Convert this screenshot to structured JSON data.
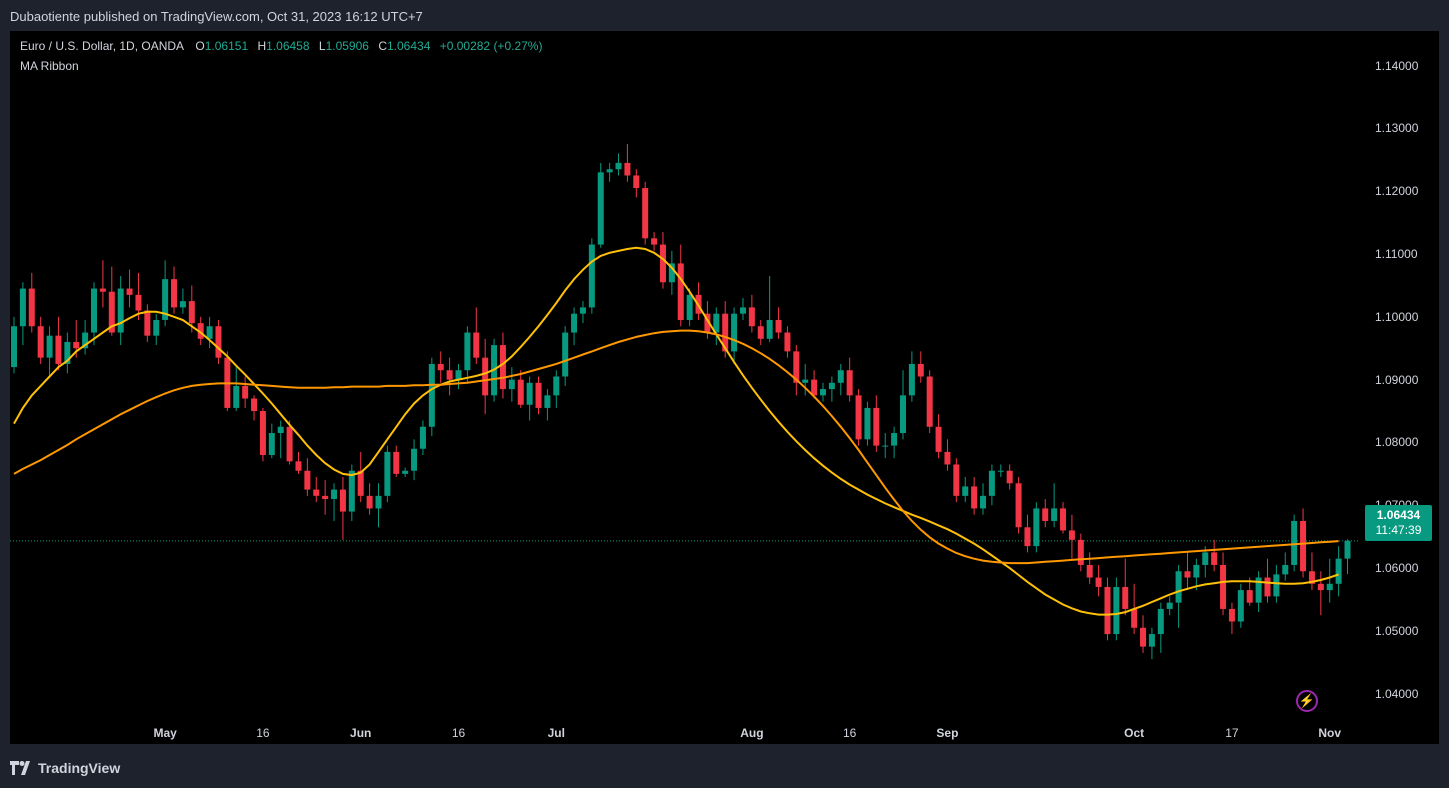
{
  "header": {
    "published": "Dubaotiente published on TradingView.com, Oct 31, 2023 16:12 UTC+7"
  },
  "legend": {
    "symbol": "Euro / U.S. Dollar, 1D, OANDA",
    "o_label": "O",
    "o_value": "1.06151",
    "h_label": "H",
    "h_value": "1.06458",
    "l_label": "L",
    "l_value": "1.05906",
    "c_label": "C",
    "c_value": "1.06434",
    "change": "+0.00282 (+0.27%)",
    "indicator": "MA Ribbon"
  },
  "price_badge": {
    "price": "1.06434",
    "countdown": "11:47:39"
  },
  "branding": {
    "logo_text": "TradingView"
  },
  "colors": {
    "up": "#089981",
    "down": "#f23645",
    "ma_fast": "#ffc107",
    "ma_slow": "#ff9800",
    "bg": "#000000"
  },
  "icons": {
    "bolt": "lightning-bolt-icon",
    "logo": "tradingview-logo-icon"
  },
  "chart_data": {
    "type": "candlestick",
    "title": "Euro / U.S. Dollar, 1D, OANDA",
    "ylim": [
      1.032,
      1.1455
    ],
    "y_ticks": [
      "1.04000",
      "1.05000",
      "1.06000",
      "1.07000",
      "1.08000",
      "1.09000",
      "1.10000",
      "1.11000",
      "1.12000",
      "1.13000",
      "1.14000"
    ],
    "x_ticks": [
      {
        "label": "May",
        "bold": true,
        "index": 17
      },
      {
        "label": "16",
        "bold": false,
        "index": 28
      },
      {
        "label": "Jun",
        "bold": true,
        "index": 39
      },
      {
        "label": "16",
        "bold": false,
        "index": 50
      },
      {
        "label": "Jul",
        "bold": true,
        "index": 61
      },
      {
        "label": "Aug",
        "bold": true,
        "index": 83
      },
      {
        "label": "16",
        "bold": false,
        "index": 94
      },
      {
        "label": "Sep",
        "bold": true,
        "index": 105
      },
      {
        "label": "Oct",
        "bold": true,
        "index": 126
      },
      {
        "label": "17",
        "bold": false,
        "index": 137
      },
      {
        "label": "Nov",
        "bold": true,
        "index": 148
      }
    ],
    "last_price": 1.06434,
    "ohlc": [
      [
        1.092,
        1.1,
        1.091,
        1.0985
      ],
      [
        1.0985,
        1.1055,
        1.0955,
        1.1045
      ],
      [
        1.1045,
        1.107,
        1.0975,
        1.0985
      ],
      [
        1.0985,
        1.1,
        1.0925,
        1.0935
      ],
      [
        1.0935,
        1.0985,
        1.0905,
        1.097
      ],
      [
        1.097,
        1.1,
        1.0915,
        1.0925
      ],
      [
        1.0925,
        1.0975,
        1.091,
        1.096
      ],
      [
        1.096,
        1.0995,
        1.0935,
        1.095
      ],
      [
        1.095,
        1.0995,
        1.094,
        1.0975
      ],
      [
        1.0975,
        1.1055,
        1.0955,
        1.1045
      ],
      [
        1.1045,
        1.109,
        1.1015,
        1.104
      ],
      [
        1.104,
        1.108,
        1.097,
        1.0975
      ],
      [
        1.0975,
        1.1065,
        1.0955,
        1.1045
      ],
      [
        1.1045,
        1.1075,
        1.1015,
        1.1035
      ],
      [
        1.1035,
        1.107,
        1.0995,
        1.101
      ],
      [
        1.101,
        1.102,
        1.096,
        1.097
      ],
      [
        1.097,
        1.1005,
        1.0955,
        1.0995
      ],
      [
        1.0995,
        1.109,
        1.0985,
        1.106
      ],
      [
        1.106,
        1.108,
        1.1005,
        1.1015
      ],
      [
        1.1015,
        1.1045,
        1.1005,
        1.1025
      ],
      [
        1.1025,
        1.105,
        1.0975,
        1.099
      ],
      [
        1.099,
        1.1,
        1.0955,
        1.0965
      ],
      [
        1.0965,
        1.1,
        1.095,
        1.0985
      ],
      [
        1.0985,
        1.0995,
        1.0925,
        1.0935
      ],
      [
        1.0935,
        1.0945,
        1.085,
        1.0855
      ],
      [
        1.0855,
        1.092,
        1.085,
        1.089
      ],
      [
        1.089,
        1.0905,
        1.0855,
        1.087
      ],
      [
        1.087,
        1.0875,
        1.0835,
        1.085
      ],
      [
        1.085,
        1.0855,
        1.077,
        1.078
      ],
      [
        1.078,
        1.083,
        1.0775,
        1.0815
      ],
      [
        1.0815,
        1.0835,
        1.0775,
        1.0825
      ],
      [
        1.0825,
        1.0835,
        1.0765,
        1.077
      ],
      [
        1.077,
        1.0785,
        1.075,
        1.0755
      ],
      [
        1.0755,
        1.0775,
        1.0715,
        1.0725
      ],
      [
        1.0725,
        1.0745,
        1.0705,
        1.0715
      ],
      [
        1.0715,
        1.074,
        1.0685,
        1.071
      ],
      [
        1.071,
        1.0735,
        1.0675,
        1.0725
      ],
      [
        1.0725,
        1.0745,
        1.0645,
        1.069
      ],
      [
        1.069,
        1.0765,
        1.0675,
        1.0755
      ],
      [
        1.0755,
        1.0785,
        1.0705,
        1.0715
      ],
      [
        1.0715,
        1.0735,
        1.0685,
        1.0695
      ],
      [
        1.0695,
        1.0735,
        1.0665,
        1.0715
      ],
      [
        1.0715,
        1.0795,
        1.0705,
        1.0785
      ],
      [
        1.0785,
        1.0795,
        1.0745,
        1.075
      ],
      [
        1.075,
        1.076,
        1.0745,
        1.0755
      ],
      [
        1.0755,
        1.0805,
        1.074,
        1.079
      ],
      [
        1.079,
        1.0835,
        1.078,
        1.0825
      ],
      [
        1.0825,
        1.0935,
        1.081,
        1.0925
      ],
      [
        1.0925,
        1.0945,
        1.0895,
        1.0915
      ],
      [
        1.0915,
        1.0935,
        1.0875,
        1.09
      ],
      [
        1.09,
        1.0925,
        1.0885,
        1.0915
      ],
      [
        1.0915,
        1.0985,
        1.0895,
        1.0975
      ],
      [
        1.0975,
        1.1015,
        1.0925,
        1.0935
      ],
      [
        1.0935,
        1.0965,
        1.0845,
        1.0875
      ],
      [
        1.0875,
        1.0965,
        1.0865,
        1.0955
      ],
      [
        1.0955,
        1.0975,
        1.087,
        1.0885
      ],
      [
        1.0885,
        1.092,
        1.0865,
        1.09
      ],
      [
        1.09,
        1.0915,
        1.0855,
        1.086
      ],
      [
        1.086,
        1.0905,
        1.0835,
        1.0895
      ],
      [
        1.0895,
        1.0905,
        1.0845,
        1.0855
      ],
      [
        1.0855,
        1.0885,
        1.0835,
        1.0875
      ],
      [
        1.0875,
        1.0915,
        1.0855,
        1.0905
      ],
      [
        1.0905,
        1.0985,
        1.089,
        1.0975
      ],
      [
        1.0975,
        1.1015,
        1.0955,
        1.1005
      ],
      [
        1.1005,
        1.1025,
        1.099,
        1.1015
      ],
      [
        1.1015,
        1.1125,
        1.1005,
        1.1115
      ],
      [
        1.1115,
        1.1245,
        1.111,
        1.123
      ],
      [
        1.123,
        1.1245,
        1.1215,
        1.1235
      ],
      [
        1.1235,
        1.126,
        1.1225,
        1.1245
      ],
      [
        1.1245,
        1.1275,
        1.1215,
        1.1225
      ],
      [
        1.1225,
        1.1235,
        1.119,
        1.1205
      ],
      [
        1.1205,
        1.1215,
        1.1115,
        1.1125
      ],
      [
        1.1125,
        1.1135,
        1.1105,
        1.1115
      ],
      [
        1.1115,
        1.1135,
        1.1045,
        1.1055
      ],
      [
        1.1055,
        1.1105,
        1.1035,
        1.1085
      ],
      [
        1.1085,
        1.1115,
        1.0985,
        1.0995
      ],
      [
        1.0995,
        1.1045,
        1.0985,
        1.1035
      ],
      [
        1.1035,
        1.1055,
        1.0995,
        1.1005
      ],
      [
        1.1005,
        1.1025,
        1.0965,
        1.0975
      ],
      [
        1.0975,
        1.1015,
        1.0955,
        1.1005
      ],
      [
        1.1005,
        1.1025,
        1.0935,
        1.0945
      ],
      [
        1.0945,
        1.1015,
        1.0925,
        1.1005
      ],
      [
        1.1005,
        1.103,
        1.0995,
        1.1015
      ],
      [
        1.1015,
        1.1035,
        1.0975,
        1.0985
      ],
      [
        1.0985,
        1.0995,
        1.0955,
        1.0965
      ],
      [
        1.0965,
        1.1065,
        1.096,
        1.0995
      ],
      [
        1.0995,
        1.1015,
        1.0965,
        1.0975
      ],
      [
        1.0975,
        1.0985,
        1.0935,
        1.0945
      ],
      [
        1.0945,
        1.0955,
        1.0875,
        1.0895
      ],
      [
        1.0895,
        1.0925,
        1.0875,
        1.09
      ],
      [
        1.09,
        1.0915,
        1.087,
        1.0875
      ],
      [
        1.0875,
        1.0895,
        1.0865,
        1.0885
      ],
      [
        1.0885,
        1.0905,
        1.0865,
        1.0895
      ],
      [
        1.0895,
        1.0925,
        1.0875,
        1.0915
      ],
      [
        1.0915,
        1.0935,
        1.0865,
        1.0875
      ],
      [
        1.0875,
        1.0885,
        1.0795,
        1.0805
      ],
      [
        1.0805,
        1.0865,
        1.0795,
        1.0855
      ],
      [
        1.0855,
        1.0875,
        1.0785,
        1.0795
      ],
      [
        1.0795,
        1.0815,
        1.0775,
        1.0795
      ],
      [
        1.0795,
        1.0825,
        1.0775,
        1.0815
      ],
      [
        1.0815,
        1.0915,
        1.0805,
        1.0875
      ],
      [
        1.0875,
        1.0945,
        1.0865,
        1.0925
      ],
      [
        1.0925,
        1.0945,
        1.0895,
        1.0905
      ],
      [
        1.0905,
        1.0915,
        1.0815,
        1.0825
      ],
      [
        1.0825,
        1.0845,
        1.0775,
        1.0785
      ],
      [
        1.0785,
        1.0805,
        1.0755,
        1.0765
      ],
      [
        1.0765,
        1.0775,
        1.0705,
        1.0715
      ],
      [
        1.0715,
        1.0745,
        1.0705,
        1.073
      ],
      [
        1.073,
        1.0745,
        1.0685,
        1.0695
      ],
      [
        1.0695,
        1.0735,
        1.0685,
        1.0715
      ],
      [
        1.0715,
        1.0765,
        1.07,
        1.0755
      ],
      [
        1.0755,
        1.0765,
        1.0745,
        1.0755
      ],
      [
        1.0755,
        1.0765,
        1.0725,
        1.0735
      ],
      [
        1.0735,
        1.0745,
        1.0655,
        1.0665
      ],
      [
        1.0665,
        1.0685,
        1.0625,
        1.0635
      ],
      [
        1.0635,
        1.0705,
        1.0625,
        1.0695
      ],
      [
        1.0695,
        1.071,
        1.0665,
        1.0675
      ],
      [
        1.0675,
        1.0735,
        1.0665,
        1.0695
      ],
      [
        1.0695,
        1.0705,
        1.0655,
        1.066
      ],
      [
        1.066,
        1.0685,
        1.0615,
        1.0645
      ],
      [
        1.0645,
        1.0655,
        1.0595,
        1.0605
      ],
      [
        1.0605,
        1.0625,
        1.0575,
        1.0585
      ],
      [
        1.0585,
        1.0605,
        1.0555,
        1.057
      ],
      [
        1.057,
        1.0585,
        1.0485,
        1.0495
      ],
      [
        1.0495,
        1.0585,
        1.0485,
        1.057
      ],
      [
        1.057,
        1.0615,
        1.0525,
        1.0535
      ],
      [
        1.0535,
        1.0575,
        1.0495,
        1.0505
      ],
      [
        1.0505,
        1.0525,
        1.0465,
        1.0475
      ],
      [
        1.0475,
        1.0505,
        1.0455,
        1.0495
      ],
      [
        1.0495,
        1.0545,
        1.0465,
        1.0535
      ],
      [
        1.0535,
        1.0555,
        1.0525,
        1.0545
      ],
      [
        1.0545,
        1.0605,
        1.0505,
        1.0595
      ],
      [
        1.0595,
        1.0625,
        1.0565,
        1.0585
      ],
      [
        1.0585,
        1.0615,
        1.0565,
        1.0605
      ],
      [
        1.0605,
        1.0635,
        1.0585,
        1.0625
      ],
      [
        1.0625,
        1.0645,
        1.0595,
        1.0605
      ],
      [
        1.0605,
        1.0625,
        1.0525,
        1.0535
      ],
      [
        1.0535,
        1.0545,
        1.0495,
        1.0515
      ],
      [
        1.0515,
        1.0575,
        1.0505,
        1.0565
      ],
      [
        1.0565,
        1.0585,
        1.054,
        1.0545
      ],
      [
        1.0545,
        1.0595,
        1.053,
        1.0585
      ],
      [
        1.0585,
        1.0615,
        1.0545,
        1.0555
      ],
      [
        1.0555,
        1.0605,
        1.0545,
        1.059
      ],
      [
        1.059,
        1.0625,
        1.058,
        1.0605
      ],
      [
        1.0605,
        1.0685,
        1.0595,
        1.0675
      ],
      [
        1.0675,
        1.0695,
        1.0585,
        1.0595
      ],
      [
        1.0595,
        1.0625,
        1.0565,
        1.0575
      ],
      [
        1.0575,
        1.0595,
        1.0525,
        1.0565
      ],
      [
        1.0565,
        1.0615,
        1.0545,
        1.0575
      ],
      [
        1.0575,
        1.0635,
        1.0555,
        1.0615
      ],
      [
        1.06151,
        1.06458,
        1.05906,
        1.06434
      ]
    ],
    "series": [
      {
        "name": "MA fast",
        "color": "#ffc107",
        "values": [
          1.083,
          1.0855,
          1.0875,
          1.089,
          1.0905,
          1.092,
          1.093,
          1.0945,
          1.0955,
          1.0965,
          1.0975,
          1.0985,
          1.099,
          1.0998,
          1.1005,
          1.1008,
          1.1008,
          1.1005,
          1.1,
          1.0995,
          1.0985,
          1.0975,
          1.0963,
          1.095,
          1.0937,
          1.0922,
          1.0908,
          1.0893,
          1.0878,
          1.0862,
          1.0845,
          1.0828,
          1.0812,
          1.0795,
          1.078,
          1.0767,
          1.0757,
          1.075,
          1.0748,
          1.0752,
          1.0765,
          1.0785,
          1.0805,
          1.0825,
          1.0845,
          1.0862,
          1.0875,
          1.0885,
          1.0892,
          1.0897,
          1.09,
          1.0903,
          1.0906,
          1.091,
          1.0916,
          1.0925,
          1.0937,
          1.0952,
          1.0968,
          1.0985,
          1.1003,
          1.1022,
          1.1042,
          1.106,
          1.1075,
          1.1088,
          1.1097,
          1.1102,
          1.1105,
          1.1108,
          1.111,
          1.1108,
          1.1102,
          1.1092,
          1.1078,
          1.106,
          1.104,
          1.1018,
          1.0995,
          1.0972,
          1.095,
          1.0928,
          1.0907,
          1.0887,
          1.0868,
          1.085,
          1.0833,
          1.0817,
          1.0802,
          1.0788,
          1.0775,
          1.0763,
          1.0752,
          1.0742,
          1.0733,
          1.0725,
          1.0717,
          1.071,
          1.0703,
          1.0697,
          1.0691,
          1.0685,
          1.068,
          1.0674,
          1.0668,
          1.0662,
          1.0655,
          1.0647,
          1.0639,
          1.063,
          1.062,
          1.061,
          1.06,
          1.0589,
          1.0578,
          1.0568,
          1.0558,
          1.055,
          1.0542,
          1.0536,
          1.0531,
          1.0528,
          1.0526,
          1.0526,
          1.0527,
          1.053,
          1.0535,
          1.054,
          1.0546,
          1.0552,
          1.0558,
          1.0563,
          1.0567,
          1.0571,
          1.0574,
          1.0576,
          1.0578,
          1.0579,
          1.0579,
          1.0579,
          1.0578,
          1.0577,
          1.0576,
          1.0575,
          1.0575,
          1.0576,
          1.0578,
          1.0581,
          1.0585,
          1.059
        ]
      },
      {
        "name": "MA slow",
        "color": "#ff9800",
        "values": [
          1.075,
          1.0758,
          1.0765,
          1.0772,
          1.078,
          1.0788,
          1.0796,
          1.0805,
          1.0813,
          1.0821,
          1.0829,
          1.0837,
          1.0845,
          1.0852,
          1.0859,
          1.0866,
          1.0872,
          1.0878,
          1.0883,
          1.0887,
          1.089,
          1.0892,
          1.0893,
          1.0894,
          1.0894,
          1.0894,
          1.0893,
          1.0892,
          1.0891,
          1.089,
          1.0889,
          1.0888,
          1.0887,
          1.0887,
          1.0887,
          1.0887,
          1.0888,
          1.0888,
          1.0889,
          1.0889,
          1.0889,
          1.0889,
          1.089,
          1.089,
          1.089,
          1.0891,
          1.0891,
          1.0892,
          1.0892,
          1.0893,
          1.0894,
          1.0895,
          1.0897,
          1.0899,
          1.0901,
          1.0903,
          1.0906,
          1.0909,
          1.0913,
          1.0917,
          1.0921,
          1.0925,
          1.093,
          1.0935,
          1.094,
          1.0945,
          1.095,
          1.0955,
          1.096,
          1.0964,
          1.0968,
          1.0971,
          1.0974,
          1.0976,
          1.0977,
          1.0978,
          1.0978,
          1.0977,
          1.0975,
          1.0972,
          1.0968,
          1.0963,
          1.0957,
          1.095,
          1.0942,
          1.0933,
          1.0923,
          1.0912,
          1.09,
          1.0887,
          1.0873,
          1.0858,
          1.0842,
          1.0825,
          1.0807,
          1.0788,
          1.0768,
          1.0748,
          1.0728,
          1.0709,
          1.0691,
          1.0675,
          1.0661,
          1.0649,
          1.0639,
          1.0631,
          1.0624,
          1.0619,
          1.0615,
          1.0612,
          1.061,
          1.0609,
          1.0608,
          1.0608,
          1.0608,
          1.0609,
          1.061,
          1.0611,
          1.0612,
          1.0613,
          1.0614,
          1.0615,
          1.0616,
          1.0617,
          1.0618,
          1.0619,
          1.062,
          1.0621,
          1.0622,
          1.0623,
          1.0624,
          1.0625,
          1.0626,
          1.0627,
          1.0628,
          1.0629,
          1.063,
          1.0631,
          1.0632,
          1.0633,
          1.0634,
          1.0635,
          1.0636,
          1.0637,
          1.0638,
          1.0639,
          1.064,
          1.0641,
          1.0642,
          1.0643
        ]
      }
    ]
  }
}
